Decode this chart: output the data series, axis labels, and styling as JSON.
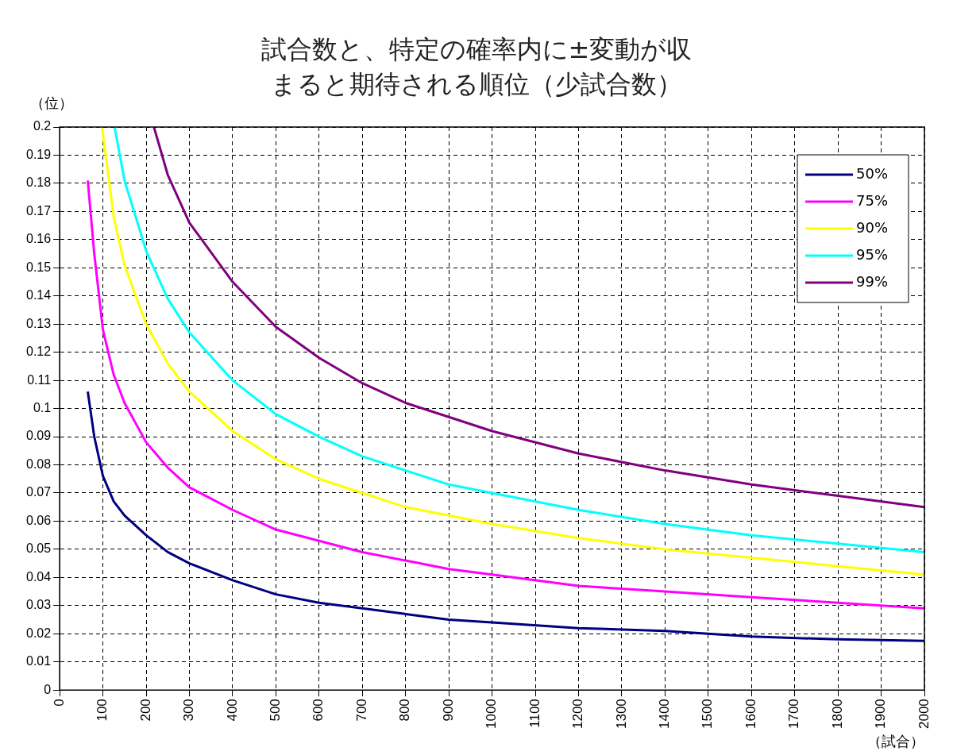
{
  "chart_data": {
    "type": "line",
    "title": "試合数と、特定の確率内に±変動が収まると期待される順位（少試合数）",
    "xlabel": "（試合）",
    "ylabel": "（位）",
    "xlim": [
      0,
      2000
    ],
    "xticks": [
      0,
      100,
      200,
      300,
      400,
      500,
      600,
      700,
      800,
      900,
      1000,
      1100,
      1200,
      1300,
      1400,
      1500,
      1600,
      1700,
      1800,
      1900,
      2000
    ],
    "ylim": [
      0,
      0.2
    ],
    "yticks": [
      0,
      0.01,
      0.02,
      0.03,
      0.04,
      0.05,
      0.06,
      0.07,
      0.08,
      0.09,
      0.1,
      0.11,
      0.12,
      0.13,
      0.14,
      0.15,
      0.16,
      0.17,
      0.18,
      0.19,
      0.2
    ],
    "grid": true,
    "legend": "top right",
    "marker": "none",
    "series": [
      {
        "name": "50%",
        "color": "#000080",
        "x": [
          65,
          80,
          100,
          125,
          150,
          200,
          250,
          300,
          400,
          500,
          600,
          700,
          800,
          900,
          1000,
          1200,
          1400,
          1600,
          1800,
          2000
        ],
        "values": [
          0.106,
          0.09,
          0.076,
          0.067,
          0.062,
          0.055,
          0.049,
          0.045,
          0.039,
          0.034,
          0.031,
          0.029,
          0.027,
          0.025,
          0.024,
          0.022,
          0.021,
          0.019,
          0.018,
          0.0175
        ]
      },
      {
        "name": "75%",
        "color": "#ff00ff",
        "x": [
          65,
          80,
          100,
          125,
          150,
          200,
          250,
          300,
          400,
          500,
          600,
          700,
          800,
          900,
          1000,
          1200,
          1400,
          1600,
          1800,
          2000
        ],
        "values": [
          0.181,
          0.155,
          0.128,
          0.112,
          0.102,
          0.088,
          0.079,
          0.072,
          0.064,
          0.057,
          0.053,
          0.049,
          0.046,
          0.043,
          0.041,
          0.037,
          0.035,
          0.033,
          0.031,
          0.029
        ]
      },
      {
        "name": "90%",
        "color": "#ffff00",
        "x": [
          98,
          125,
          150,
          200,
          250,
          300,
          400,
          500,
          600,
          700,
          800,
          900,
          1000,
          1200,
          1400,
          1600,
          1800,
          2000
        ],
        "values": [
          0.2,
          0.168,
          0.151,
          0.13,
          0.116,
          0.106,
          0.092,
          0.082,
          0.075,
          0.07,
          0.065,
          0.062,
          0.059,
          0.054,
          0.05,
          0.047,
          0.044,
          0.041
        ]
      },
      {
        "name": "95%",
        "color": "#00ffff",
        "x": [
          127,
          150,
          200,
          250,
          300,
          400,
          500,
          600,
          700,
          800,
          900,
          1000,
          1200,
          1400,
          1600,
          1800,
          2000
        ],
        "values": [
          0.2,
          0.181,
          0.156,
          0.139,
          0.127,
          0.11,
          0.098,
          0.09,
          0.083,
          0.078,
          0.073,
          0.07,
          0.064,
          0.059,
          0.055,
          0.052,
          0.049
        ]
      },
      {
        "name": "99%",
        "color": "#800080",
        "x": [
          218,
          250,
          300,
          400,
          500,
          600,
          700,
          800,
          900,
          1000,
          1200,
          1400,
          1600,
          1800,
          2000
        ],
        "values": [
          0.2,
          0.183,
          0.166,
          0.145,
          0.129,
          0.118,
          0.109,
          0.102,
          0.097,
          0.092,
          0.084,
          0.078,
          0.073,
          0.069,
          0.065
        ]
      }
    ]
  }
}
